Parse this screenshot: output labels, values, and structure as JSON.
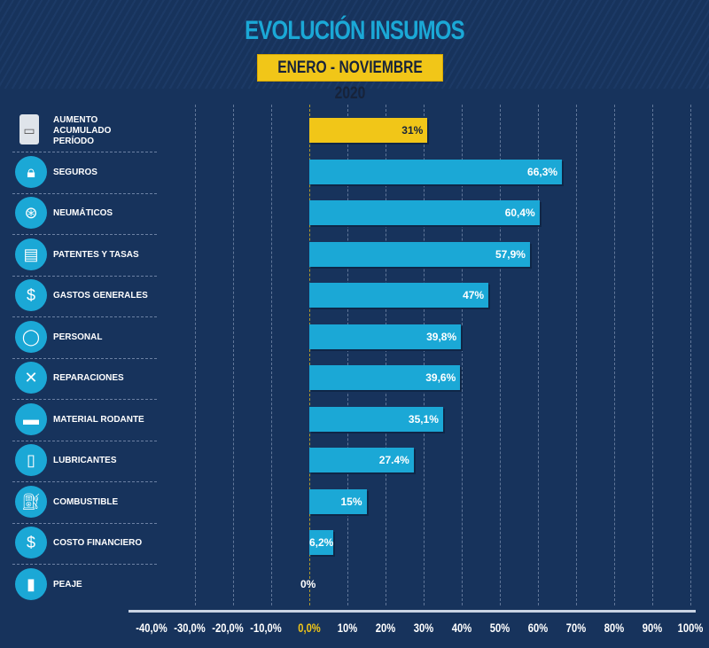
{
  "chart_data": {
    "type": "bar",
    "orientation": "horizontal",
    "title": "EVOLUCIÓN INSUMOS",
    "subtitle": "ENERO - NOVIEMBRE 2020",
    "xlim": [
      -40,
      100
    ],
    "ticks": [
      "-40,0%",
      "-30,0%",
      "-20,0%",
      "-10,0%",
      "0,0%",
      "10%",
      "20%",
      "30%",
      "40%",
      "50%",
      "60%",
      "70%",
      "80%",
      "90%",
      "100%"
    ],
    "tick_values": [
      -40,
      -30,
      -20,
      -10,
      0,
      10,
      20,
      30,
      40,
      50,
      60,
      70,
      80,
      90,
      100
    ],
    "highlight_color": "#f1c618",
    "bar_color": "#1ba8d6",
    "categories": [
      {
        "label": "AUMENTO ACUMULADO PERÍODO",
        "value": 31,
        "value_label": "31%",
        "icon": "truck-icon",
        "highlight": true
      },
      {
        "label": "SEGUROS",
        "value": 66.3,
        "value_label": "66,3%",
        "icon": "lock-icon"
      },
      {
        "label": "NEUMÁTICOS",
        "value": 60.4,
        "value_label": "60,4%",
        "icon": "tire-icon"
      },
      {
        "label": "PATENTES Y TASAS",
        "value": 57.9,
        "value_label": "57,9%",
        "icon": "license-plate-icon"
      },
      {
        "label": "GASTOS GENERALES",
        "value": 47,
        "value_label": "47%",
        "icon": "receipt-icon"
      },
      {
        "label": "PERSONAL",
        "value": 39.8,
        "value_label": "39,8%",
        "icon": "person-icon"
      },
      {
        "label": "REPARACIONES",
        "value": 39.6,
        "value_label": "39,6%",
        "icon": "tools-icon"
      },
      {
        "label": "MATERIAL RODANTE",
        "value": 35.1,
        "value_label": "35,1%",
        "icon": "bus-icon"
      },
      {
        "label": "LUBRICANTES",
        "value": 27.4,
        "value_label": "27.4%",
        "icon": "oil-icon"
      },
      {
        "label": "COMBUSTIBLE",
        "value": 15,
        "value_label": "15%",
        "icon": "fuel-icon"
      },
      {
        "label": "COSTO FINANCIERO",
        "value": 6.2,
        "value_label": "6,2%",
        "icon": "money-bag-icon"
      },
      {
        "label": "PEAJE",
        "value": 0,
        "value_label": "0%",
        "icon": "toll-icon"
      }
    ]
  }
}
